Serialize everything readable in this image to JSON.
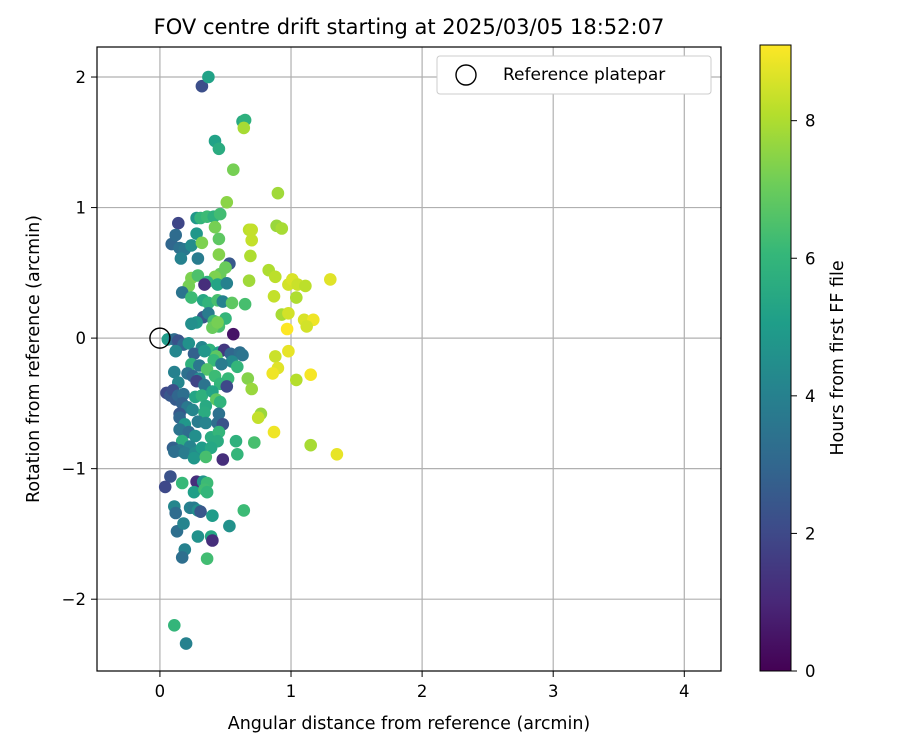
{
  "chart_data": {
    "type": "scatter",
    "title": "FOV centre drift starting at 2025/03/05 18:52:07",
    "xlabel": "Angular distance from reference (arcmin)",
    "ylabel": "Rotation from reference (arcmin)",
    "xlim": [
      -0.48,
      4.28
    ],
    "ylim": [
      -2.55,
      2.23
    ],
    "xticks": [
      0,
      1,
      2,
      3,
      4
    ],
    "xtick_labels": [
      "0",
      "1",
      "2",
      "3",
      "4"
    ],
    "yticks": [
      -2,
      -1,
      0,
      1,
      2
    ],
    "ytick_labels": [
      "−2",
      "−1",
      "0",
      "1",
      "2"
    ],
    "grid": true,
    "legend": {
      "placement": "upper-right",
      "entries": [
        "Reference platepar"
      ]
    },
    "colorbar": {
      "label": "Hours from first FF file",
      "colormap": "viridis",
      "range": [
        0,
        9.1
      ],
      "ticks": [
        0,
        2,
        4,
        6,
        8
      ],
      "tick_labels": [
        "0",
        "2",
        "4",
        "6",
        "8"
      ]
    },
    "reference": {
      "x": 0,
      "y": 0,
      "name": "Reference platepar"
    },
    "series": [
      {
        "points": [
          [
            0.32,
            1.93,
            2.2
          ],
          [
            0.37,
            2.0,
            5.2
          ],
          [
            0.63,
            1.66,
            5.5
          ],
          [
            0.65,
            1.67,
            5.8
          ],
          [
            0.64,
            1.61,
            7.9
          ],
          [
            0.42,
            1.51,
            5.2
          ],
          [
            0.45,
            1.45,
            5.6
          ],
          [
            0.56,
            1.29,
            7.2
          ],
          [
            0.51,
            1.04,
            7.5
          ],
          [
            0.9,
            1.11,
            7.8
          ],
          [
            0.14,
            0.88,
            1.9
          ],
          [
            0.28,
            0.92,
            4.8
          ],
          [
            0.31,
            0.92,
            6.0
          ],
          [
            0.36,
            0.93,
            6.2
          ],
          [
            0.41,
            0.93,
            5.8
          ],
          [
            0.46,
            0.95,
            6.3
          ],
          [
            0.42,
            0.85,
            7.2
          ],
          [
            0.45,
            0.76,
            6.8
          ],
          [
            0.89,
            0.86,
            7.7
          ],
          [
            0.93,
            0.84,
            7.9
          ],
          [
            0.68,
            0.83,
            8.2
          ],
          [
            0.7,
            0.83,
            8.3
          ],
          [
            0.7,
            0.75,
            8.3
          ],
          [
            0.09,
            0.72,
            3.0
          ],
          [
            0.12,
            0.79,
            3.2
          ],
          [
            0.15,
            0.69,
            3.4
          ],
          [
            0.19,
            0.68,
            3.6
          ],
          [
            0.24,
            0.71,
            4.4
          ],
          [
            0.28,
            0.8,
            4.8
          ],
          [
            0.32,
            0.73,
            7.3
          ],
          [
            0.45,
            0.64,
            7.4
          ],
          [
            0.16,
            0.61,
            4.0
          ],
          [
            0.29,
            0.61,
            3.8
          ],
          [
            0.53,
            0.57,
            2.5
          ],
          [
            0.69,
            0.63,
            8.0
          ],
          [
            0.5,
            0.54,
            7.0
          ],
          [
            0.46,
            0.49,
            7.0
          ],
          [
            0.42,
            0.47,
            7.3
          ],
          [
            0.24,
            0.46,
            7.3
          ],
          [
            0.29,
            0.48,
            6.5
          ],
          [
            0.36,
            0.43,
            5.8
          ],
          [
            0.44,
            0.41,
            5.3
          ],
          [
            0.51,
            0.42,
            4.0
          ],
          [
            0.34,
            0.41,
            1.2
          ],
          [
            0.22,
            0.4,
            7.2
          ],
          [
            0.68,
            0.44,
            7.8
          ],
          [
            0.83,
            0.52,
            8.0
          ],
          [
            0.88,
            0.47,
            8.2
          ],
          [
            0.98,
            0.41,
            8.5
          ],
          [
            1.01,
            0.45,
            8.6
          ],
          [
            1.05,
            0.41,
            8.4
          ],
          [
            1.11,
            0.4,
            8.2
          ],
          [
            1.3,
            0.45,
            8.7
          ],
          [
            0.17,
            0.35,
            3.5
          ],
          [
            0.24,
            0.31,
            6.2
          ],
          [
            0.33,
            0.29,
            5.4
          ],
          [
            0.37,
            0.27,
            5.9
          ],
          [
            0.44,
            0.29,
            6.4
          ],
          [
            0.48,
            0.28,
            4.0
          ],
          [
            0.55,
            0.27,
            6.8
          ],
          [
            0.65,
            0.26,
            6.4
          ],
          [
            0.87,
            0.32,
            8.3
          ],
          [
            1.04,
            0.31,
            8.0
          ],
          [
            0.93,
            0.18,
            7.9
          ],
          [
            0.98,
            0.19,
            8.5
          ],
          [
            0.33,
            0.16,
            2.5
          ],
          [
            0.37,
            0.19,
            3.8
          ],
          [
            0.41,
            0.13,
            6.3
          ],
          [
            0.45,
            0.09,
            6.4
          ],
          [
            0.5,
            0.15,
            6.0
          ],
          [
            0.28,
            0.12,
            4.8
          ],
          [
            0.24,
            0.11,
            4.5
          ],
          [
            0.56,
            0.03,
            0.5
          ],
          [
            0.4,
            0.08,
            7.0
          ],
          [
            0.44,
            0.12,
            7.2
          ],
          [
            1.1,
            0.14,
            8.6
          ],
          [
            1.17,
            0.14,
            8.9
          ],
          [
            1.12,
            0.09,
            8.5
          ],
          [
            0.97,
            0.07,
            9.1
          ],
          [
            0.06,
            -0.01,
            5.0
          ],
          [
            0.11,
            -0.01,
            3.2
          ],
          [
            0.14,
            -0.02,
            2.3
          ],
          [
            0.18,
            -0.05,
            3.0
          ],
          [
            0.22,
            -0.04,
            4.6
          ],
          [
            0.32,
            -0.07,
            4.2
          ],
          [
            0.38,
            -0.09,
            5.9
          ],
          [
            0.45,
            -0.11,
            5.2
          ],
          [
            0.49,
            -0.09,
            1.5
          ],
          [
            0.54,
            -0.12,
            3.0
          ],
          [
            0.61,
            -0.11,
            3.3
          ],
          [
            0.63,
            -0.13,
            3.5
          ],
          [
            0.12,
            -0.1,
            4.2
          ],
          [
            0.26,
            -0.12,
            2.8
          ],
          [
            0.34,
            -0.1,
            4.8
          ],
          [
            0.43,
            -0.14,
            6.8
          ],
          [
            0.88,
            -0.14,
            8.4
          ],
          [
            0.98,
            -0.1,
            8.8
          ],
          [
            0.55,
            -0.18,
            4.3
          ],
          [
            0.24,
            -0.2,
            5.8
          ],
          [
            0.3,
            -0.21,
            3.6
          ],
          [
            0.41,
            -0.17,
            6.1
          ],
          [
            0.47,
            -0.2,
            3.8
          ],
          [
            0.59,
            -0.22,
            6.0
          ],
          [
            0.36,
            -0.24,
            6.6
          ],
          [
            0.9,
            -0.23,
            8.7
          ],
          [
            0.86,
            -0.27,
            8.9
          ],
          [
            1.15,
            -0.28,
            9.0
          ],
          [
            0.11,
            -0.26,
            4.0
          ],
          [
            0.21,
            -0.27,
            3.4
          ],
          [
            0.25,
            -0.29,
            3.0
          ],
          [
            0.3,
            -0.31,
            4.3
          ],
          [
            0.42,
            -0.29,
            6.2
          ],
          [
            0.52,
            -0.31,
            6.1
          ],
          [
            0.67,
            -0.31,
            7.4
          ],
          [
            1.04,
            -0.32,
            8.1
          ],
          [
            0.14,
            -0.34,
            4.2
          ],
          [
            0.28,
            -0.33,
            1.8
          ],
          [
            0.34,
            -0.36,
            3.5
          ],
          [
            0.46,
            -0.35,
            6.0
          ],
          [
            0.51,
            -0.37,
            2.0
          ],
          [
            0.7,
            -0.39,
            7.7
          ],
          [
            0.05,
            -0.42,
            2.0
          ],
          [
            0.08,
            -0.44,
            2.5
          ],
          [
            0.1,
            -0.4,
            2.2
          ],
          [
            0.12,
            -0.47,
            2.6
          ],
          [
            0.14,
            -0.44,
            3.0
          ],
          [
            0.18,
            -0.43,
            3.3
          ],
          [
            0.27,
            -0.45,
            5.3
          ],
          [
            0.32,
            -0.44,
            5.8
          ],
          [
            0.4,
            -0.41,
            5.3
          ],
          [
            0.43,
            -0.47,
            6.8
          ],
          [
            0.46,
            -0.49,
            5.9
          ],
          [
            0.17,
            -0.5,
            2.8
          ],
          [
            0.35,
            -0.52,
            5.5
          ],
          [
            0.21,
            -0.53,
            3.7
          ],
          [
            0.25,
            -0.55,
            4.2
          ],
          [
            0.34,
            -0.57,
            5.6
          ],
          [
            0.45,
            -0.58,
            3.4
          ],
          [
            0.15,
            -0.58,
            2.5
          ],
          [
            0.15,
            -0.61,
            3.0
          ],
          [
            0.77,
            -0.58,
            7.7
          ],
          [
            0.75,
            -0.61,
            8.3
          ],
          [
            0.29,
            -0.64,
            3.8
          ],
          [
            0.35,
            -0.65,
            4.1
          ],
          [
            0.44,
            -0.65,
            3.3
          ],
          [
            0.48,
            -0.66,
            2.3
          ],
          [
            0.19,
            -0.66,
            4.8
          ],
          [
            0.15,
            -0.7,
            3.5
          ],
          [
            0.22,
            -0.72,
            3.2
          ],
          [
            0.27,
            -0.75,
            4.5
          ],
          [
            0.39,
            -0.76,
            5.6
          ],
          [
            0.45,
            -0.72,
            6.0
          ],
          [
            0.87,
            -0.72,
            8.9
          ],
          [
            0.44,
            -0.79,
            5.6
          ],
          [
            0.58,
            -0.79,
            5.8
          ],
          [
            0.72,
            -0.8,
            6.4
          ],
          [
            0.17,
            -0.79,
            5.7
          ],
          [
            0.23,
            -0.83,
            4.1
          ],
          [
            0.1,
            -0.84,
            2.8
          ],
          [
            0.15,
            -0.86,
            3.6
          ],
          [
            0.35,
            -0.86,
            6.2
          ],
          [
            0.11,
            -0.87,
            3.3
          ],
          [
            0.19,
            -0.88,
            3.8
          ],
          [
            0.27,
            -0.88,
            4.4
          ],
          [
            0.32,
            -0.84,
            5.0
          ],
          [
            0.39,
            -0.84,
            5.4
          ],
          [
            0.26,
            -0.92,
            4.8
          ],
          [
            0.35,
            -0.91,
            6.4
          ],
          [
            0.48,
            -0.93,
            1.2
          ],
          [
            0.59,
            -0.89,
            6.0
          ],
          [
            1.15,
            -0.82,
            7.9
          ],
          [
            1.35,
            -0.89,
            8.8
          ],
          [
            0.17,
            -1.11,
            6.1
          ],
          [
            0.28,
            -1.1,
            1.2
          ],
          [
            0.33,
            -1.1,
            4.7
          ],
          [
            0.36,
            -1.11,
            6.2
          ],
          [
            0.26,
            -1.18,
            5.1
          ],
          [
            0.34,
            -1.16,
            6.3
          ],
          [
            0.36,
            -1.18,
            6.0
          ],
          [
            0.08,
            -1.06,
            2.3
          ],
          [
            0.04,
            -1.14,
            2.0
          ],
          [
            0.11,
            -1.29,
            4.2
          ],
          [
            0.12,
            -1.34,
            3.2
          ],
          [
            0.23,
            -1.3,
            4.0
          ],
          [
            0.26,
            -1.3,
            3.8
          ],
          [
            0.29,
            -1.32,
            4.5
          ],
          [
            0.31,
            -1.33,
            2.5
          ],
          [
            0.4,
            -1.36,
            5.0
          ],
          [
            0.53,
            -1.44,
            4.6
          ],
          [
            0.64,
            -1.32,
            6.2
          ],
          [
            0.13,
            -1.48,
            3.3
          ],
          [
            0.18,
            -1.42,
            4.1
          ],
          [
            0.29,
            -1.52,
            4.6
          ],
          [
            0.39,
            -1.52,
            5.4
          ],
          [
            0.4,
            -1.55,
            1.2
          ],
          [
            0.19,
            -1.62,
            4.0
          ],
          [
            0.17,
            -1.68,
            3.3
          ],
          [
            0.36,
            -1.69,
            6.3
          ],
          [
            0.11,
            -2.2,
            6.0
          ],
          [
            0.2,
            -2.34,
            4.0
          ]
        ]
      }
    ]
  }
}
